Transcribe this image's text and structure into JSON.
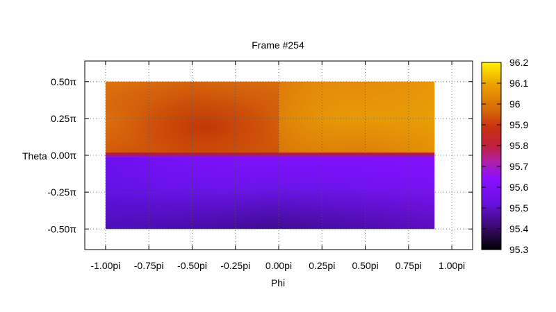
{
  "chart_data": {
    "type": "heatmap",
    "title": "Frame #254",
    "xlabel": "Phi",
    "ylabel": "Theta",
    "xlim": [
      -1.12,
      1.12
    ],
    "ylim": [
      -0.64,
      0.64
    ],
    "x_ticks": [
      {
        "value": -1.0,
        "label": "-1.00pi"
      },
      {
        "value": -0.75,
        "label": "-0.75pi"
      },
      {
        "value": -0.5,
        "label": "-0.50pi"
      },
      {
        "value": -0.25,
        "label": "-0.25pi"
      },
      {
        "value": 0.0,
        "label": "0.00pi"
      },
      {
        "value": 0.25,
        "label": "0.25pi"
      },
      {
        "value": 0.5,
        "label": "0.50pi"
      },
      {
        "value": 0.75,
        "label": "0.75pi"
      },
      {
        "value": 1.0,
        "label": "1.00pi"
      }
    ],
    "y_ticks": [
      {
        "value": 0.5,
        "label": "0.50π"
      },
      {
        "value": 0.25,
        "label": "0.25π"
      },
      {
        "value": 0.0,
        "label": "0.00π"
      },
      {
        "value": -0.25,
        "label": "-0.25π"
      },
      {
        "value": -0.5,
        "label": "-0.50π"
      }
    ],
    "grid": true,
    "data_extent": {
      "phi": [
        -1.0,
        0.9
      ],
      "theta": [
        -0.5,
        0.5
      ]
    },
    "colorbar": {
      "range": [
        95.3,
        96.2
      ],
      "ticks": [
        "95.3",
        "95.4",
        "95.5",
        "95.6",
        "95.7",
        "95.8",
        "95.9",
        "96",
        "96.1",
        "96.2"
      ],
      "palette": "black-purple-red-yellow"
    },
    "regions": [
      {
        "phi": [
          -1.0,
          0.0
        ],
        "theta": [
          0.0,
          0.5
        ],
        "value_range": [
          95.82,
          95.98
        ],
        "min_near": {
          "phi": -0.4,
          "theta": 0.2
        }
      },
      {
        "phi": [
          0.0,
          0.9
        ],
        "theta": [
          0.0,
          0.5
        ],
        "value_range": [
          96.0,
          96.08
        ]
      },
      {
        "phi": [
          -1.0,
          0.9
        ],
        "theta": [
          -0.5,
          0.0
        ],
        "value_range": [
          95.36,
          95.48
        ]
      }
    ]
  }
}
